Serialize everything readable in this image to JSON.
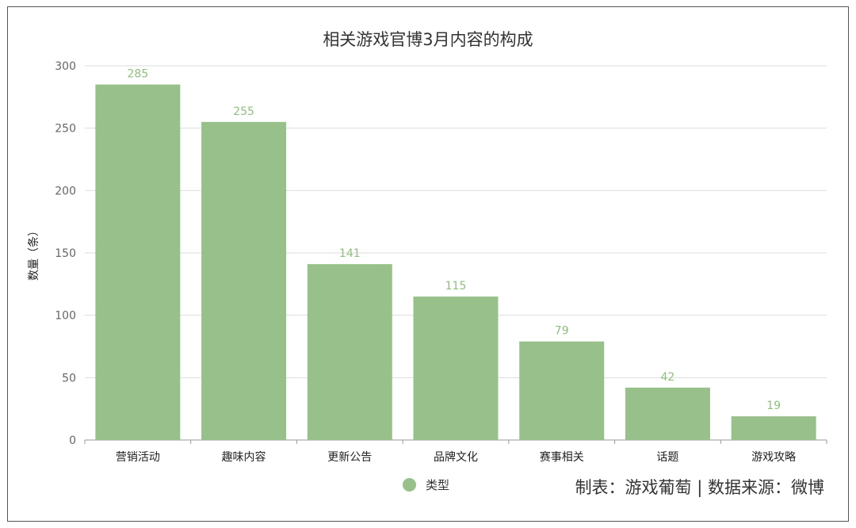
{
  "chart_data": {
    "type": "bar",
    "title": "相关游戏官博3月内容的构成",
    "ylabel": "数量（条）",
    "xlabel": "",
    "categories": [
      "营销活动",
      "趣味内容",
      "更新公告",
      "品牌文化",
      "赛事相关",
      "话题",
      "游戏攻略"
    ],
    "series": [
      {
        "name": "类型",
        "values": [
          285,
          255,
          141,
          115,
          79,
          42,
          19
        ],
        "color": "#97c08a"
      }
    ],
    "ylim": [
      0,
      300
    ],
    "yticks": [
      0,
      50,
      100,
      150,
      200,
      250,
      300
    ],
    "grid": true,
    "data_labels": true,
    "legend_position": "bottom-center",
    "label_color": "#8fbf7f"
  },
  "footer": {
    "source": "制表：游戏葡萄 | 数据来源：微博"
  }
}
